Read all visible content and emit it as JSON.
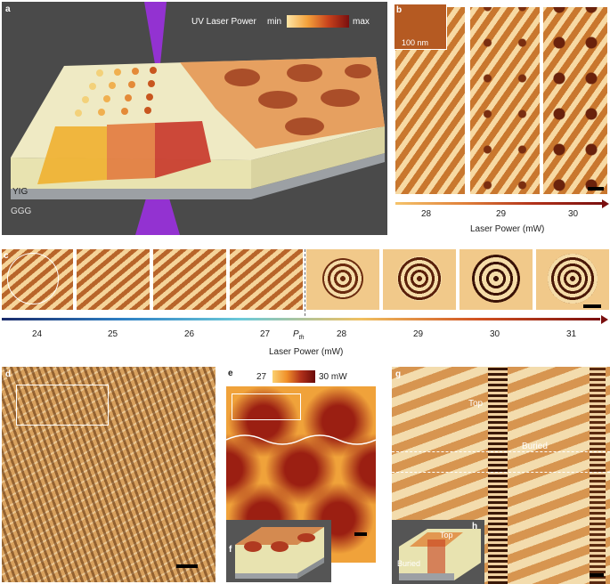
{
  "panel_labels": {
    "a": "a",
    "b": "b",
    "c": "c",
    "d": "d",
    "e": "e",
    "f": "f",
    "g": "g",
    "h": "h"
  },
  "panel_a": {
    "colorbar_title": "UV Laser Power",
    "colorbar_min": "min",
    "colorbar_max": "max",
    "yig": "YIG",
    "ggg": "GGG"
  },
  "panel_b": {
    "inset_scale": "100 nm",
    "ticks": [
      "28",
      "29",
      "30"
    ],
    "axis_label": "Laser Power (mW)"
  },
  "panel_c": {
    "ticks": [
      "24",
      "25",
      "26",
      "27",
      "28",
      "29",
      "30",
      "31"
    ],
    "pth_main": "P",
    "pth_sub": "th",
    "axis_label": "Laser Power (mW)"
  },
  "panel_e": {
    "colorbar_min": "27",
    "colorbar_max": "30 mW"
  },
  "panel_g": {
    "top": "Top",
    "buried": "Buried"
  },
  "panel_h": {
    "top": "Top",
    "buried": "Buried"
  },
  "colors": {
    "background_a": "#4a4a4a",
    "stripe_dark": "#b8652a",
    "stripe_light": "#f5d49a",
    "map_max": "#9b1f12",
    "map_min": "#f0a23a"
  }
}
